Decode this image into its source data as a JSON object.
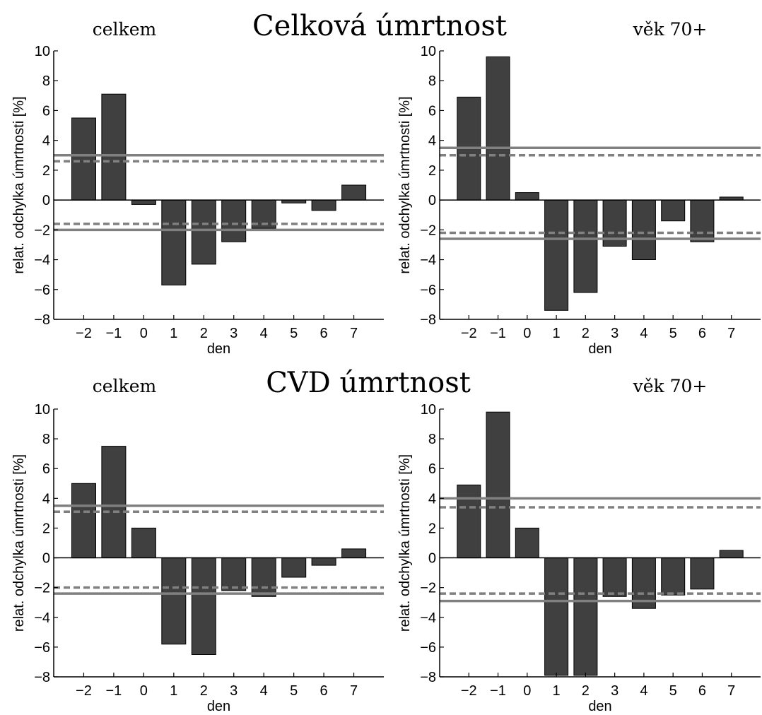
{
  "figure": {
    "sections": [
      {
        "title": "Celková úmrtnost",
        "left_label": "celkem",
        "right_label": "věk 70+"
      },
      {
        "title": "CVD úmrtnost",
        "left_label": "celkem",
        "right_label": "věk 70+"
      }
    ]
  },
  "style": {
    "bar_fill": "#404040",
    "bar_stroke": "#000000",
    "ref_line_color": "#808080",
    "axis_color": "#000000"
  },
  "chart_data": [
    {
      "type": "bar",
      "panel": "celkem",
      "section": "Celková úmrtnost",
      "categories": [
        "−2",
        "−1",
        "0",
        "1",
        "2",
        "3",
        "4",
        "5",
        "6",
        "7"
      ],
      "values": [
        5.5,
        7.1,
        -0.3,
        -5.7,
        -4.3,
        -2.8,
        -1.9,
        -0.2,
        -0.7,
        1.0
      ],
      "xlabel": "den",
      "ylabel": "relat. odchylka úmrtnosti [%]",
      "ylim": [
        -8,
        10
      ],
      "yticks": [
        "−8",
        "−6",
        "−4",
        "−2",
        "0",
        "2",
        "4",
        "6",
        "8",
        "10"
      ],
      "ref_lines": {
        "upper_solid": 3.0,
        "upper_dashed": 2.6,
        "lower_dashed": -1.6,
        "lower_solid": -2.0
      }
    },
    {
      "type": "bar",
      "panel": "věk 70+",
      "section": "Celková úmrtnost",
      "categories": [
        "−2",
        "−1",
        "0",
        "1",
        "2",
        "3",
        "4",
        "5",
        "6",
        "7"
      ],
      "values": [
        6.9,
        9.6,
        0.5,
        -7.4,
        -6.2,
        -3.1,
        -4.0,
        -1.4,
        -2.8,
        0.2
      ],
      "xlabel": "den",
      "ylabel": "relat. odchylka úmrtnosti [%]",
      "ylim": [
        -8,
        10
      ],
      "yticks": [
        "−8",
        "−6",
        "−4",
        "−2",
        "0",
        "2",
        "4",
        "6",
        "8",
        "10"
      ],
      "ref_lines": {
        "upper_solid": 3.5,
        "upper_dashed": 3.0,
        "lower_dashed": -2.2,
        "lower_solid": -2.6
      }
    },
    {
      "type": "bar",
      "panel": "celkem",
      "section": "CVD úmrtnost",
      "categories": [
        "−2",
        "−1",
        "0",
        "1",
        "2",
        "3",
        "4",
        "5",
        "6",
        "7"
      ],
      "values": [
        5.0,
        7.5,
        2.0,
        -5.8,
        -6.5,
        -2.2,
        -2.6,
        -1.3,
        -0.5,
        0.6
      ],
      "xlabel": "den",
      "ylabel": "relat. odchylka úmrtnosti [%]",
      "ylim": [
        -8,
        10
      ],
      "yticks": [
        "−8",
        "−6",
        "−4",
        "−2",
        "0",
        "2",
        "4",
        "6",
        "8",
        "10"
      ],
      "ref_lines": {
        "upper_solid": 3.5,
        "upper_dashed": 3.1,
        "lower_dashed": -2.0,
        "lower_solid": -2.4
      }
    },
    {
      "type": "bar",
      "panel": "věk 70+",
      "section": "CVD úmrtnost",
      "categories": [
        "−2",
        "−1",
        "0",
        "1",
        "2",
        "3",
        "4",
        "5",
        "6",
        "7"
      ],
      "values": [
        4.9,
        9.8,
        2.0,
        -7.9,
        -7.9,
        -2.6,
        -3.4,
        -2.5,
        -2.1,
        0.5
      ],
      "xlabel": "den",
      "ylabel": "relat. odchylka úmrtnosti [%]",
      "ylim": [
        -8,
        10
      ],
      "yticks": [
        "−8",
        "−6",
        "−4",
        "−2",
        "0",
        "2",
        "4",
        "6",
        "8",
        "10"
      ],
      "ref_lines": {
        "upper_solid": 4.0,
        "upper_dashed": 3.4,
        "lower_dashed": -2.4,
        "lower_solid": -2.9
      }
    }
  ]
}
